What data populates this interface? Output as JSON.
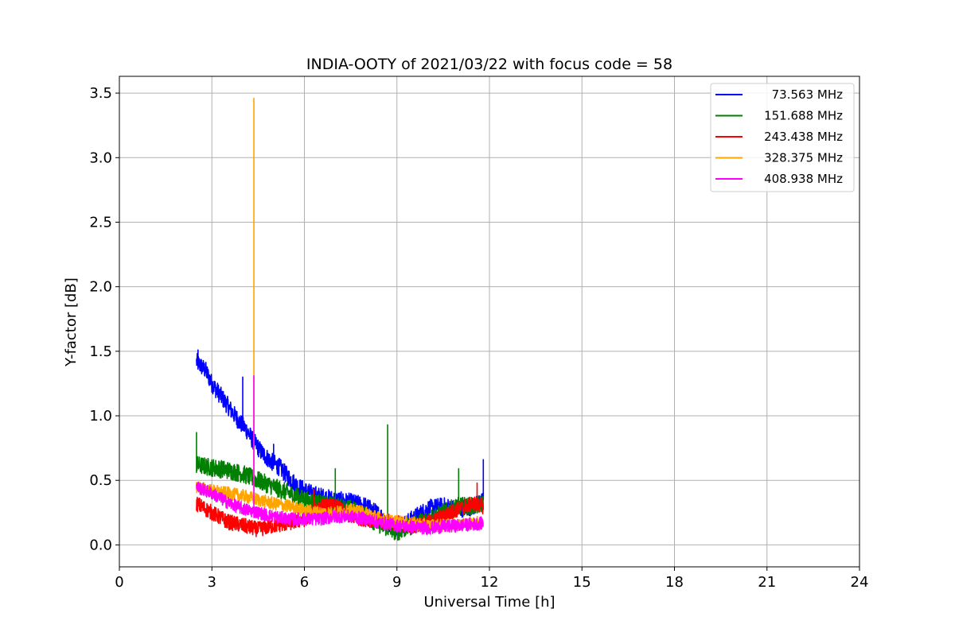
{
  "chart_data": {
    "type": "line",
    "title": "INDIA-OOTY of 2021/03/22 with focus code = 58",
    "xlabel": "Universal Time [h]",
    "ylabel": "Y-factor [dB]",
    "xlim": [
      0,
      24
    ],
    "ylim": [
      -0.17,
      3.63
    ],
    "xticks": [
      0,
      3,
      6,
      9,
      12,
      15,
      18,
      21,
      24
    ],
    "xtick_labels": [
      "0",
      "3",
      "6",
      "9",
      "12",
      "15",
      "18",
      "21",
      "24"
    ],
    "yticks": [
      0.0,
      0.5,
      1.0,
      1.5,
      2.0,
      2.5,
      3.0,
      3.5
    ],
    "ytick_labels": [
      "0.0",
      "0.5",
      "1.0",
      "1.5",
      "2.0",
      "2.5",
      "3.0",
      "3.5"
    ],
    "grid": true,
    "legend_position": "top-right",
    "series": [
      {
        "name": "  73.563 MHz",
        "color": "#0000ff",
        "points": [
          [
            2.5,
            1.42
          ],
          [
            2.8,
            1.35
          ],
          [
            3.0,
            1.25
          ],
          [
            3.3,
            1.15
          ],
          [
            3.6,
            1.05
          ],
          [
            3.9,
            0.95
          ],
          [
            4.1,
            0.9
          ],
          [
            4.3,
            0.82
          ],
          [
            4.6,
            0.72
          ],
          [
            4.9,
            0.65
          ],
          [
            5.2,
            0.6
          ],
          [
            5.5,
            0.52
          ],
          [
            5.8,
            0.45
          ],
          [
            6.2,
            0.4
          ],
          [
            6.6,
            0.37
          ],
          [
            7.0,
            0.35
          ],
          [
            7.5,
            0.33
          ],
          [
            8.0,
            0.3
          ],
          [
            8.5,
            0.22
          ],
          [
            9.0,
            0.12
          ],
          [
            9.5,
            0.2
          ],
          [
            10.0,
            0.28
          ],
          [
            10.5,
            0.3
          ],
          [
            11.0,
            0.28
          ],
          [
            11.5,
            0.3
          ],
          [
            11.8,
            0.35
          ]
        ],
        "noise": 0.07,
        "spikes": [
          [
            2.55,
            1.51
          ],
          [
            4.0,
            1.3
          ],
          [
            5.0,
            0.78
          ],
          [
            11.8,
            0.66
          ]
        ]
      },
      {
        "name": "151.688 MHz",
        "color": "#008000",
        "points": [
          [
            2.5,
            0.62
          ],
          [
            3.0,
            0.6
          ],
          [
            3.5,
            0.58
          ],
          [
            4.0,
            0.55
          ],
          [
            4.5,
            0.5
          ],
          [
            5.0,
            0.45
          ],
          [
            5.5,
            0.4
          ],
          [
            6.0,
            0.35
          ],
          [
            6.5,
            0.32
          ],
          [
            7.0,
            0.3
          ],
          [
            7.5,
            0.28
          ],
          [
            8.0,
            0.22
          ],
          [
            8.5,
            0.15
          ],
          [
            9.0,
            0.1
          ],
          [
            9.5,
            0.15
          ],
          [
            10.0,
            0.2
          ],
          [
            10.5,
            0.25
          ],
          [
            11.0,
            0.3
          ],
          [
            11.5,
            0.3
          ],
          [
            11.8,
            0.32
          ]
        ],
        "noise": 0.07,
        "spikes": [
          [
            2.5,
            0.87
          ],
          [
            7.0,
            0.59
          ],
          [
            8.7,
            0.93
          ],
          [
            11.0,
            0.59
          ]
        ]
      },
      {
        "name": "243.438 MHz",
        "color": "#ff0000",
        "points": [
          [
            2.5,
            0.32
          ],
          [
            3.0,
            0.25
          ],
          [
            3.5,
            0.18
          ],
          [
            4.0,
            0.15
          ],
          [
            4.5,
            0.12
          ],
          [
            5.0,
            0.15
          ],
          [
            5.5,
            0.17
          ],
          [
            6.0,
            0.2
          ],
          [
            6.5,
            0.3
          ],
          [
            7.0,
            0.3
          ],
          [
            7.5,
            0.22
          ],
          [
            8.0,
            0.2
          ],
          [
            8.5,
            0.18
          ],
          [
            9.0,
            0.17
          ],
          [
            9.5,
            0.15
          ],
          [
            10.0,
            0.17
          ],
          [
            10.5,
            0.22
          ],
          [
            11.0,
            0.28
          ],
          [
            11.5,
            0.32
          ],
          [
            11.8,
            0.3
          ]
        ],
        "noise": 0.06,
        "spikes": [
          [
            6.3,
            0.43
          ],
          [
            11.6,
            0.48
          ]
        ]
      },
      {
        "name": "328.375 MHz",
        "color": "#ffa500",
        "points": [
          [
            2.5,
            0.45
          ],
          [
            3.0,
            0.42
          ],
          [
            3.5,
            0.4
          ],
          [
            4.0,
            0.38
          ],
          [
            4.5,
            0.35
          ],
          [
            5.0,
            0.32
          ],
          [
            5.5,
            0.3
          ],
          [
            6.0,
            0.27
          ],
          [
            6.5,
            0.25
          ],
          [
            7.0,
            0.25
          ],
          [
            7.5,
            0.27
          ],
          [
            8.0,
            0.25
          ],
          [
            8.5,
            0.2
          ],
          [
            9.0,
            0.18
          ],
          [
            9.5,
            0.17
          ],
          [
            10.0,
            0.15
          ],
          [
            10.5,
            0.15
          ],
          [
            11.0,
            0.16
          ],
          [
            11.5,
            0.17
          ],
          [
            11.8,
            0.18
          ]
        ],
        "noise": 0.05,
        "spikes": [
          [
            4.36,
            3.46
          ]
        ]
      },
      {
        "name": "408.938 MHz",
        "color": "#ff00ff",
        "points": [
          [
            2.5,
            0.45
          ],
          [
            3.0,
            0.4
          ],
          [
            3.5,
            0.33
          ],
          [
            4.0,
            0.28
          ],
          [
            4.5,
            0.25
          ],
          [
            5.0,
            0.22
          ],
          [
            5.5,
            0.2
          ],
          [
            6.0,
            0.2
          ],
          [
            6.5,
            0.2
          ],
          [
            7.0,
            0.22
          ],
          [
            7.5,
            0.22
          ],
          [
            8.0,
            0.2
          ],
          [
            8.5,
            0.17
          ],
          [
            9.0,
            0.15
          ],
          [
            9.5,
            0.14
          ],
          [
            10.0,
            0.13
          ],
          [
            10.5,
            0.14
          ],
          [
            11.0,
            0.15
          ],
          [
            11.5,
            0.16
          ],
          [
            11.8,
            0.17
          ]
        ],
        "noise": 0.05,
        "spikes": [
          [
            4.36,
            1.31
          ]
        ]
      }
    ]
  }
}
